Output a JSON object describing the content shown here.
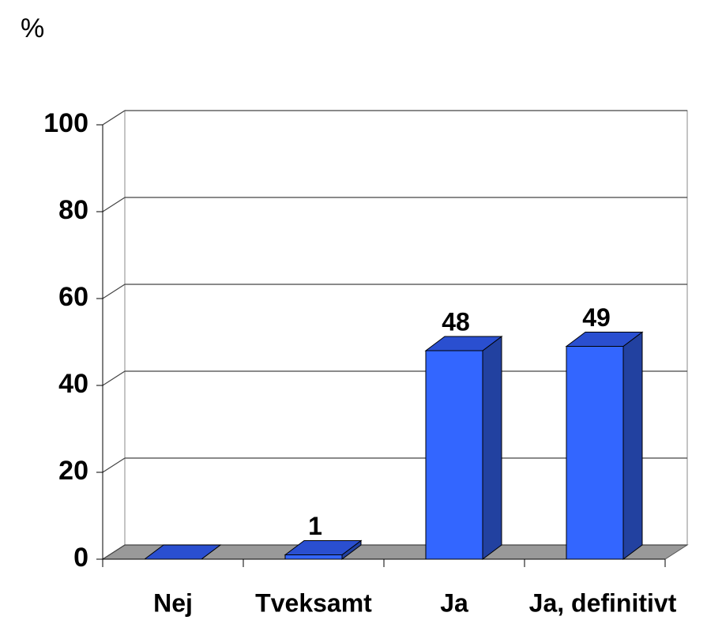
{
  "chart_data": {
    "type": "bar3d",
    "y_label": "%",
    "categories": [
      "Nej",
      "Tveksamt",
      "Ja",
      "Ja, definitivt"
    ],
    "values": [
      0,
      1,
      48,
      49
    ],
    "value_labels": [
      null,
      "1",
      "48",
      "49"
    ],
    "color": "#3366ff",
    "ylim": [
      0,
      100
    ],
    "yticks": [
      0,
      20,
      40,
      60,
      80,
      100
    ],
    "grid": true
  }
}
